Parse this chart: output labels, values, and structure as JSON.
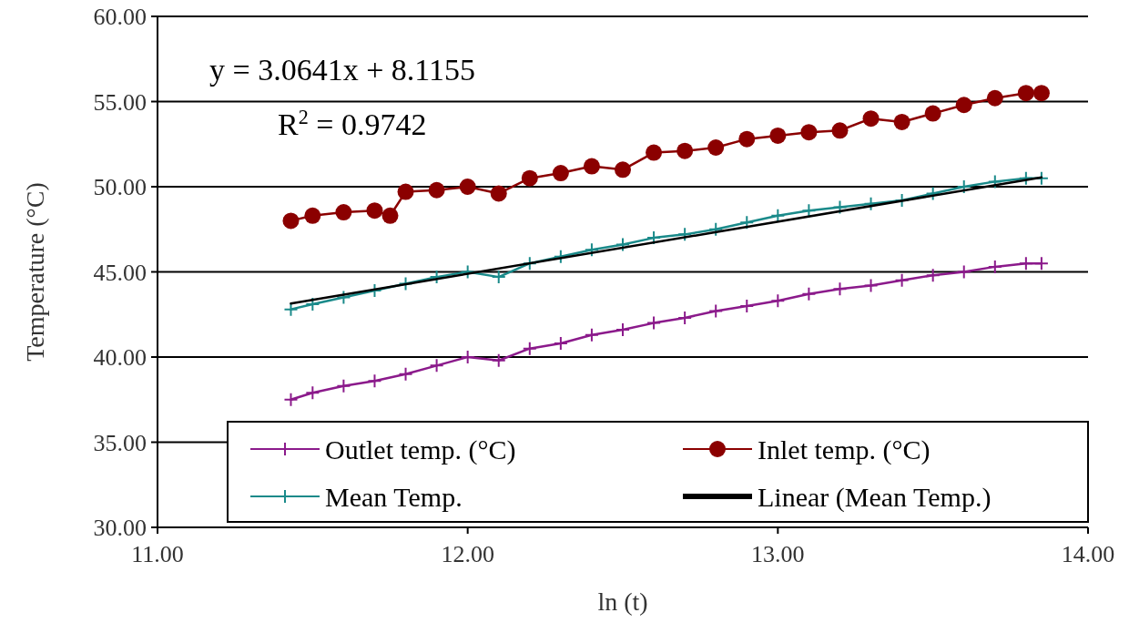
{
  "chart_data": {
    "type": "line",
    "xlabel": "ln (t)",
    "ylabel": "Temperature (°C)",
    "xlim": [
      11,
      14
    ],
    "xticks": [
      {
        "value": 11,
        "label": "11.00"
      },
      {
        "value": 12,
        "label": "12.00"
      },
      {
        "value": 13,
        "label": "13.00"
      },
      {
        "value": 14,
        "label": "14.00"
      }
    ],
    "ylim": [
      30,
      60
    ],
    "yticks": [
      {
        "value": 30,
        "label": "30.00"
      },
      {
        "value": 35,
        "label": "35.00"
      },
      {
        "value": 40,
        "label": "40.00"
      },
      {
        "value": 45,
        "label": "45.00"
      },
      {
        "value": 50,
        "label": "50.00"
      },
      {
        "value": 55,
        "label": "55.00"
      },
      {
        "value": 60,
        "label": "60.00"
      }
    ],
    "grid": "y",
    "legend": "bottom right",
    "annotations": [
      "y = 3.0641x + 8.1155",
      "R$^{2}$ = 0.9742"
    ],
    "series": [
      {
        "name": "Outlet temp. (°C)",
        "color": "#8b1a8b",
        "marker": "cross",
        "x": [
          11.43,
          11.5,
          11.6,
          11.7,
          11.8,
          11.9,
          12.0,
          12.1,
          12.2,
          12.3,
          12.4,
          12.5,
          12.6,
          12.7,
          12.8,
          12.9,
          13.0,
          13.1,
          13.2,
          13.3,
          13.4,
          13.5,
          13.6,
          13.7,
          13.8,
          13.85
        ],
        "values": [
          37.5,
          37.9,
          38.3,
          38.6,
          39.0,
          39.5,
          40.0,
          39.8,
          40.5,
          40.8,
          41.3,
          41.6,
          42.0,
          42.3,
          42.7,
          43.0,
          43.3,
          43.7,
          44.0,
          44.2,
          44.5,
          44.8,
          45.0,
          45.3,
          45.5,
          45.5
        ]
      },
      {
        "name": "Inlet temp. (°C)",
        "color": "#8b0000",
        "marker": "circle",
        "x": [
          11.43,
          11.5,
          11.6,
          11.7,
          11.75,
          11.8,
          11.9,
          12.0,
          12.1,
          12.2,
          12.3,
          12.4,
          12.5,
          12.6,
          12.7,
          12.8,
          12.9,
          13.0,
          13.1,
          13.2,
          13.3,
          13.4,
          13.5,
          13.6,
          13.7,
          13.8,
          13.85
        ],
        "values": [
          48.0,
          48.3,
          48.5,
          48.6,
          48.3,
          49.7,
          49.8,
          50.0,
          49.6,
          50.5,
          50.8,
          51.2,
          51.0,
          52.0,
          52.1,
          52.3,
          52.8,
          53.0,
          53.2,
          53.3,
          54.0,
          53.8,
          54.3,
          54.8,
          55.2,
          55.5,
          55.5
        ]
      },
      {
        "name": "Mean Temp.",
        "color": "#1a8a8a",
        "marker": "cross",
        "x": [
          11.43,
          11.5,
          11.6,
          11.7,
          11.8,
          11.9,
          12.0,
          12.1,
          12.2,
          12.3,
          12.4,
          12.5,
          12.6,
          12.7,
          12.8,
          12.9,
          13.0,
          13.1,
          13.2,
          13.3,
          13.4,
          13.5,
          13.6,
          13.7,
          13.8,
          13.85
        ],
        "values": [
          42.8,
          43.1,
          43.5,
          43.9,
          44.3,
          44.7,
          45.0,
          44.7,
          45.5,
          45.9,
          46.3,
          46.6,
          47.0,
          47.2,
          47.5,
          47.9,
          48.3,
          48.6,
          48.8,
          49.0,
          49.2,
          49.6,
          50.0,
          50.3,
          50.5,
          50.5
        ]
      },
      {
        "name": "Linear (Mean Temp.)",
        "color": "#000000",
        "marker": "none",
        "x": [
          11.43,
          13.85
        ],
        "values": [
          43.14,
          50.55
        ]
      }
    ]
  }
}
